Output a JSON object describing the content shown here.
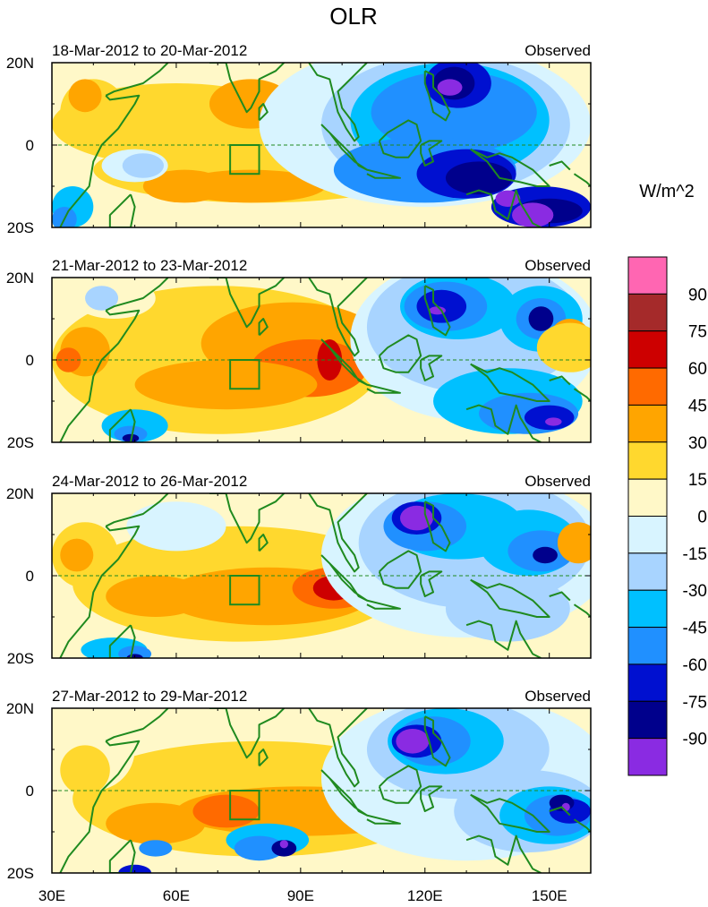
{
  "title": "OLR",
  "units": "W/m^2",
  "panels": [
    {
      "period": "18-Mar-2012 to 20-Mar-2012",
      "label": "Observed"
    },
    {
      "period": "21-Mar-2012 to 23-Mar-2012",
      "label": "Observed"
    },
    {
      "period": "24-Mar-2012 to 26-Mar-2012",
      "label": "Observed"
    },
    {
      "period": "27-Mar-2012 to 29-Mar-2012",
      "label": "Observed"
    }
  ],
  "lat_labels": [
    "20N",
    "0",
    "20S"
  ],
  "lon_labels": [
    "30E",
    "60E",
    "90E",
    "120E",
    "150E"
  ],
  "colorbar": {
    "labels": [
      "90",
      "75",
      "60",
      "45",
      "30",
      "15",
      "0",
      "-15",
      "-30",
      "-45",
      "-60",
      "-75",
      "-90"
    ],
    "colors": [
      "#ff66b2",
      "#a52a2a",
      "#cd0000",
      "#ff6a00",
      "#ffa500",
      "#ffd82e",
      "#fff8c8",
      "#d8f4ff",
      "#a8d4ff",
      "#00c0ff",
      "#2090ff",
      "#0010d0",
      "#00008c",
      "#8a2be2"
    ]
  },
  "palette": {
    "coast": "#1f8a1f",
    "equator": "#1f8a1f"
  }
}
